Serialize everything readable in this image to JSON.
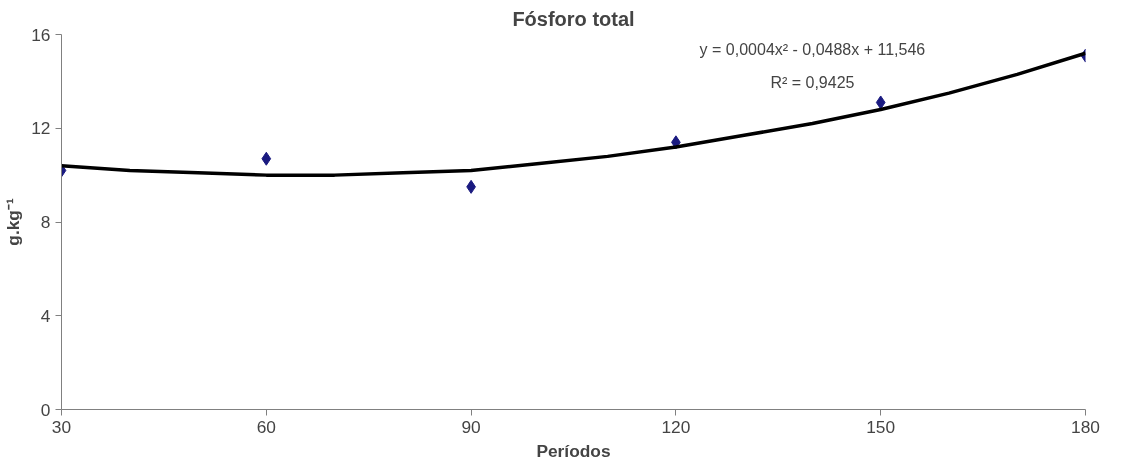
{
  "chart_data": {
    "type": "scatter",
    "title": "Fósforo total",
    "xlabel": "Períodos",
    "ylabel": "g.kg⁻¹",
    "x": [
      30,
      60,
      90,
      120,
      150,
      180
    ],
    "series": [
      {
        "color": "#1a1a80",
        "marker": "diamond",
        "values": [
          10.2,
          10.7,
          9.5,
          11.4,
          13.1,
          15.1
        ]
      },
      {
        "type": "line",
        "color": "#000000",
        "line_style": "solid",
        "x": [
          30,
          40,
          50,
          60,
          70,
          80,
          90,
          100,
          110,
          120,
          130,
          140,
          150,
          160,
          170,
          180
        ],
        "values": [
          10.4,
          10.2,
          10.1,
          10.0,
          10.0,
          10.1,
          10.2,
          10.5,
          10.8,
          11.2,
          11.7,
          12.2,
          12.8,
          13.5,
          14.3,
          15.2
        ]
      }
    ],
    "annotations": [
      "y = 0,0004x² - 0,0488x + 11,546",
      "R² = 0,9425"
    ],
    "xlim": [
      30,
      180
    ],
    "xticks": [
      30,
      60,
      90,
      120,
      150,
      180
    ],
    "ylim": [
      0,
      16
    ],
    "yticks": [
      0,
      4,
      8,
      12,
      16
    ],
    "grid": false
  }
}
